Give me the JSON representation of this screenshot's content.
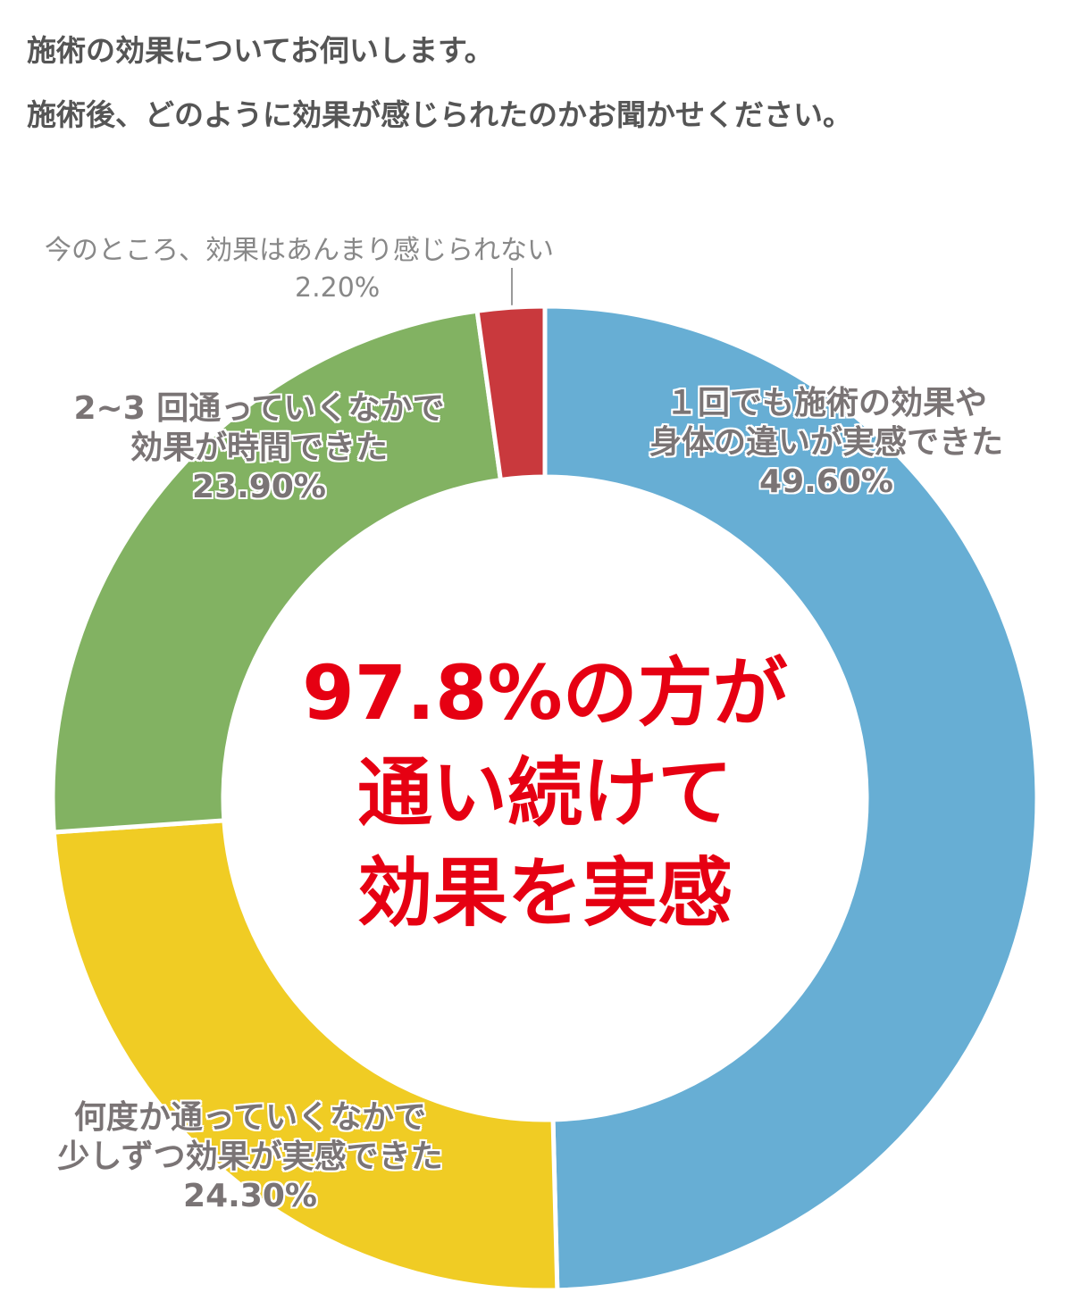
{
  "header": {
    "line1": "施術の効果についてお伺いします。",
    "line2": "施術後、どのように効果が感じられたのかお聞かせください。"
  },
  "chart_data": {
    "type": "pie",
    "donut": true,
    "start": "top",
    "direction": "clockwise",
    "slices": [
      {
        "label_line1": "１回でも施術の効果や",
        "label_line2": "身体の違いが実感できた",
        "value": 49.6,
        "value_label": "49.60%",
        "color": "#67aed4"
      },
      {
        "label_line1": "何度か通っていくなかで",
        "label_line2": "少しずつ効果が実感できた",
        "value": 24.3,
        "value_label": "24.30%",
        "color": "#f0cc24"
      },
      {
        "label_line1": "2~3 回通っていくなかで",
        "label_line2": "効果が時間できた",
        "value": 23.9,
        "value_label": "23.90%",
        "color": "#82b262"
      },
      {
        "label_line1": "今のところ、効果はあんまり感じられない",
        "label_line2": "",
        "value": 2.2,
        "value_label": "2.20%",
        "color": "#c9393d"
      }
    ],
    "center_text": [
      "97.8%の方が",
      "通い続けて",
      "効果を実感"
    ],
    "center_color": "#e60012"
  }
}
